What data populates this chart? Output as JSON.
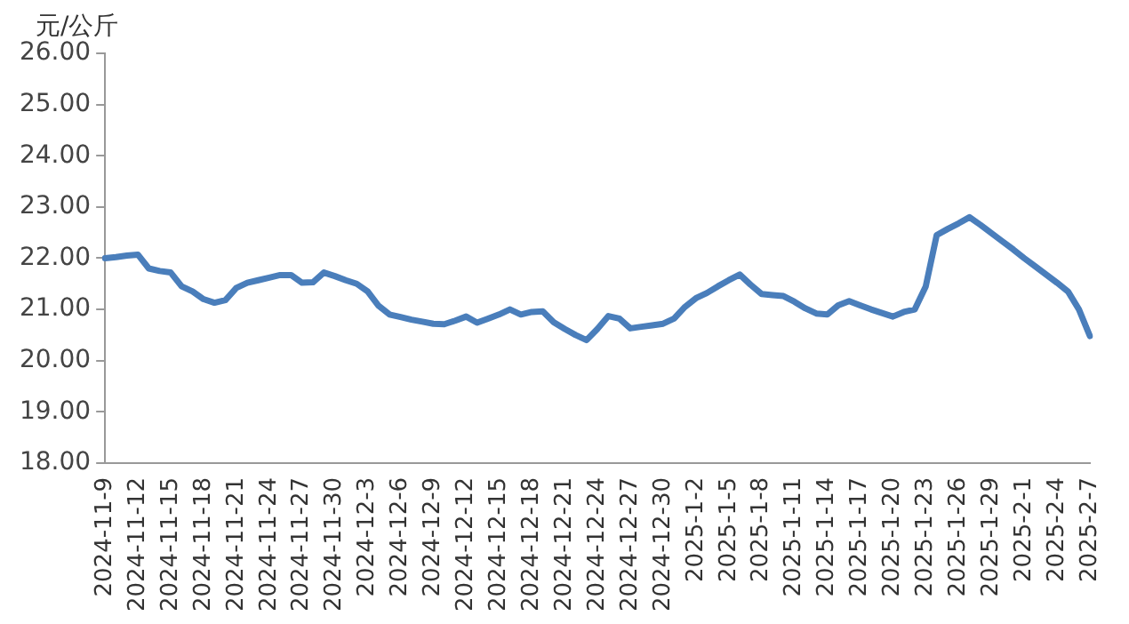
{
  "chart_data": {
    "type": "line",
    "ylabel": "元/公斤",
    "categories": [
      "2024-11-9",
      null,
      null,
      "2024-11-12",
      null,
      null,
      "2024-11-15",
      null,
      null,
      "2024-11-18",
      null,
      null,
      "2024-11-21",
      null,
      null,
      "2024-11-24",
      null,
      null,
      "2024-11-27",
      null,
      null,
      "2024-11-30",
      null,
      null,
      "2024-12-3",
      null,
      null,
      "2024-12-6",
      null,
      null,
      "2024-12-9",
      null,
      null,
      "2024-12-12",
      null,
      null,
      "2024-12-15",
      null,
      null,
      "2024-12-18",
      null,
      null,
      "2024-12-21",
      null,
      null,
      "2024-12-24",
      null,
      null,
      "2024-12-27",
      null,
      null,
      "2024-12-30",
      null,
      null,
      "2025-1-2",
      null,
      null,
      "2025-1-5",
      null,
      null,
      "2025-1-8",
      null,
      null,
      "2025-1-11",
      null,
      null,
      "2025-1-14",
      null,
      null,
      "2025-1-17",
      null,
      null,
      "2025-1-20",
      null,
      null,
      "2025-1-23",
      null,
      null,
      "2025-1-26",
      null,
      null,
      "2025-1-29",
      null,
      null,
      "2025-2-1",
      null,
      null,
      "2025-2-4",
      null,
      null,
      "2025-2-7"
    ],
    "series": [
      {
        "color": "#4a7ebb",
        "values": [
          22.0,
          22.02,
          22.05,
          22.07,
          21.8,
          21.75,
          21.72,
          21.45,
          21.35,
          21.2,
          21.13,
          21.18,
          21.42,
          21.52,
          21.57,
          21.62,
          21.67,
          21.67,
          21.52,
          21.53,
          21.72,
          21.65,
          21.57,
          21.5,
          21.35,
          21.07,
          20.9,
          20.85,
          20.8,
          20.76,
          20.72,
          20.71,
          20.78,
          20.86,
          20.74,
          20.82,
          20.9,
          21.0,
          20.9,
          20.95,
          20.96,
          20.75,
          20.62,
          20.5,
          20.4,
          20.62,
          20.87,
          20.82,
          20.63,
          20.66,
          20.69,
          20.72,
          20.82,
          21.05,
          21.22,
          21.32,
          21.45,
          21.57,
          21.68,
          21.48,
          21.3,
          21.28,
          21.26,
          21.15,
          21.02,
          20.92,
          20.9,
          21.08,
          21.16,
          21.08,
          21.0,
          20.93,
          20.86,
          20.95,
          21.0,
          21.45,
          22.45,
          22.57,
          22.68,
          22.8,
          22.65,
          22.49,
          22.33,
          22.17,
          22.0,
          21.84,
          21.68,
          21.52,
          21.35,
          21.0,
          20.48
        ]
      }
    ],
    "ylim": [
      18,
      26
    ],
    "yticks": [
      {
        "value": 18,
        "label": "18.00"
      },
      {
        "value": 19,
        "label": "19.00"
      },
      {
        "value": 20,
        "label": "20.00"
      },
      {
        "value": 21,
        "label": "21.00"
      },
      {
        "value": 22,
        "label": "22.00"
      },
      {
        "value": 23,
        "label": "23.00"
      },
      {
        "value": 24,
        "label": "24.00"
      },
      {
        "value": 25,
        "label": "25.00"
      },
      {
        "value": 26,
        "label": "26.00"
      }
    ],
    "grid": false,
    "legend": false,
    "marker": "none",
    "line_style": "solid"
  }
}
